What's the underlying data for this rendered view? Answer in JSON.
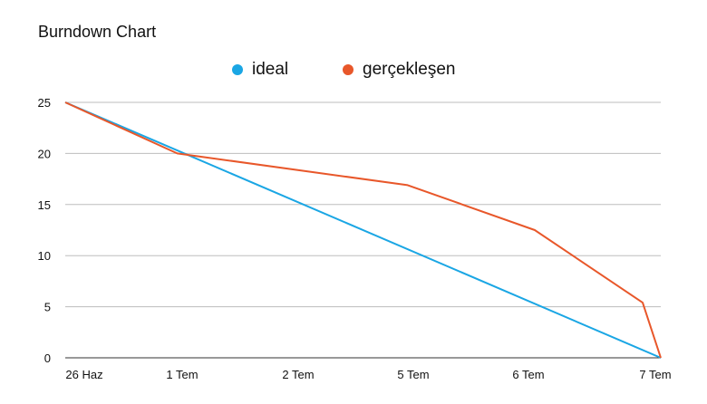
{
  "chart_data": {
    "type": "line",
    "title": "Burndown Chart",
    "categories": [
      "26 Haz",
      "1 Tem",
      "2 Tem",
      "5 Tem",
      "6 Tem",
      "7 Tem"
    ],
    "yticks": [
      "0",
      "5",
      "10",
      "15",
      "20",
      "25"
    ],
    "ylim": [
      0,
      25
    ],
    "grid": true,
    "legend_position": "top-center",
    "series": [
      {
        "name": "ideal",
        "color": "#1aa6e4",
        "points": [
          [
            0,
            25
          ],
          [
            7.4,
            0
          ]
        ]
      },
      {
        "name": "gerçekleşen",
        "color": "#e8572a",
        "points": [
          [
            0,
            25
          ],
          [
            0.95,
            20
          ],
          [
            2.95,
            16.9
          ],
          [
            4.05,
            12.5
          ],
          [
            4.9,
            5.4
          ],
          [
            7.4,
            0
          ]
        ]
      }
    ]
  }
}
